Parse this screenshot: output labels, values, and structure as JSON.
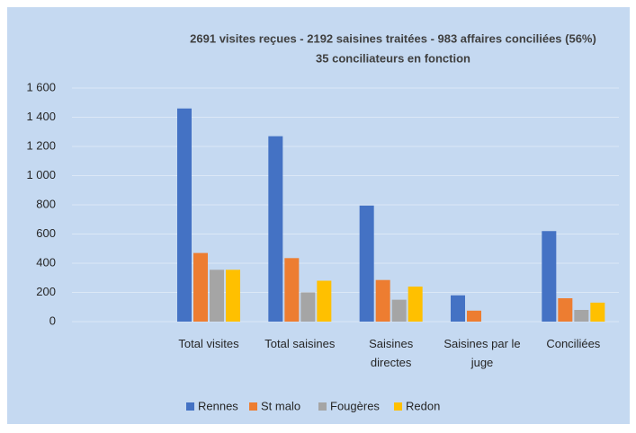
{
  "chart_data": {
    "type": "bar",
    "subtitle": [
      "2691 visites reçues - 2192 saisines traitées  - 983 affaires conciliées (56%)",
      "35 conciliateurs en fonction"
    ],
    "categories": [
      null,
      "Total  visites",
      "Total  saisines",
      "Saisines directes",
      "Saisines par le juge",
      "Conciliées"
    ],
    "series": [
      {
        "name": "Rennes",
        "color": "#4472c4",
        "values": [
          null,
          1460,
          1270,
          795,
          180,
          620
        ]
      },
      {
        "name": "St malo",
        "color": "#ed7d31",
        "values": [
          null,
          470,
          435,
          285,
          75,
          160
        ]
      },
      {
        "name": "Fougères",
        "color": "#a5a5a5",
        "values": [
          null,
          355,
          200,
          150,
          null,
          80
        ]
      },
      {
        "name": "Redon",
        "color": "#ffc000",
        "values": [
          null,
          355,
          280,
          240,
          null,
          130
        ]
      }
    ],
    "ylim": [
      0,
      1600
    ],
    "yticks": [
      0,
      200,
      400,
      600,
      800,
      {
        "value": 1000,
        "label": "1 000"
      },
      {
        "value": 1200,
        "label": "1 200"
      },
      {
        "value": 1400,
        "label": "1 400"
      },
      {
        "value": 1600,
        "label": "1 600"
      }
    ],
    "grid": true,
    "legend": "bottom"
  }
}
